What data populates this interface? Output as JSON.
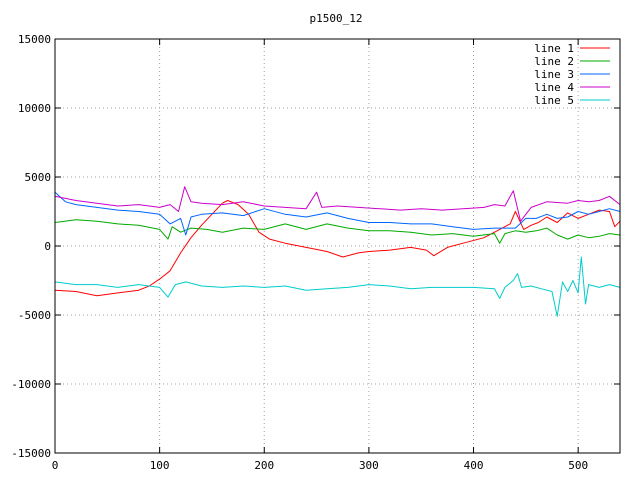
{
  "chart_data": {
    "type": "line",
    "title": "p1500_12",
    "xlabel": "",
    "ylabel": "",
    "xlim": [
      0,
      540
    ],
    "ylim": [
      -15000,
      15000
    ],
    "x_ticks": [
      0,
      100,
      200,
      300,
      400,
      500
    ],
    "y_ticks": [
      -15000,
      -10000,
      -5000,
      0,
      5000,
      10000,
      15000
    ],
    "grid": true,
    "legend_position": "top-right",
    "series": [
      {
        "name": "line 1",
        "color": "#ff0000",
        "points": [
          [
            0,
            -3200
          ],
          [
            20,
            -3300
          ],
          [
            40,
            -3600
          ],
          [
            60,
            -3400
          ],
          [
            80,
            -3200
          ],
          [
            90,
            -2900
          ],
          [
            100,
            -2400
          ],
          [
            110,
            -1800
          ],
          [
            120,
            -500
          ],
          [
            130,
            600
          ],
          [
            140,
            1500
          ],
          [
            150,
            2300
          ],
          [
            160,
            3100
          ],
          [
            165,
            3300
          ],
          [
            175,
            3000
          ],
          [
            185,
            2300
          ],
          [
            195,
            1000
          ],
          [
            205,
            500
          ],
          [
            220,
            200
          ],
          [
            240,
            -100
          ],
          [
            260,
            -400
          ],
          [
            275,
            -800
          ],
          [
            290,
            -500
          ],
          [
            300,
            -400
          ],
          [
            320,
            -300
          ],
          [
            340,
            -100
          ],
          [
            355,
            -300
          ],
          [
            362,
            -700
          ],
          [
            375,
            -100
          ],
          [
            390,
            200
          ],
          [
            410,
            600
          ],
          [
            425,
            1200
          ],
          [
            435,
            1600
          ],
          [
            440,
            2500
          ],
          [
            448,
            1200
          ],
          [
            455,
            1500
          ],
          [
            462,
            1700
          ],
          [
            470,
            2100
          ],
          [
            480,
            1700
          ],
          [
            490,
            2400
          ],
          [
            500,
            2000
          ],
          [
            510,
            2300
          ],
          [
            520,
            2600
          ],
          [
            530,
            2500
          ],
          [
            535,
            1400
          ],
          [
            540,
            1800
          ]
        ]
      },
      {
        "name": "line 2",
        "color": "#00aa00",
        "points": [
          [
            0,
            1700
          ],
          [
            20,
            1900
          ],
          [
            40,
            1800
          ],
          [
            60,
            1600
          ],
          [
            80,
            1500
          ],
          [
            100,
            1200
          ],
          [
            108,
            500
          ],
          [
            112,
            1400
          ],
          [
            120,
            1000
          ],
          [
            130,
            1300
          ],
          [
            145,
            1200
          ],
          [
            160,
            1000
          ],
          [
            180,
            1300
          ],
          [
            200,
            1200
          ],
          [
            220,
            1600
          ],
          [
            240,
            1200
          ],
          [
            260,
            1600
          ],
          [
            280,
            1300
          ],
          [
            300,
            1100
          ],
          [
            320,
            1100
          ],
          [
            340,
            1000
          ],
          [
            360,
            800
          ],
          [
            380,
            900
          ],
          [
            400,
            700
          ],
          [
            420,
            900
          ],
          [
            425,
            200
          ],
          [
            430,
            900
          ],
          [
            440,
            1100
          ],
          [
            450,
            1000
          ],
          [
            460,
            1100
          ],
          [
            470,
            1300
          ],
          [
            480,
            800
          ],
          [
            490,
            500
          ],
          [
            500,
            800
          ],
          [
            510,
            600
          ],
          [
            520,
            700
          ],
          [
            530,
            900
          ],
          [
            540,
            800
          ]
        ]
      },
      {
        "name": "line 3",
        "color": "#0066ff",
        "points": [
          [
            0,
            3900
          ],
          [
            10,
            3200
          ],
          [
            20,
            3000
          ],
          [
            40,
            2800
          ],
          [
            60,
            2600
          ],
          [
            80,
            2500
          ],
          [
            100,
            2300
          ],
          [
            110,
            1600
          ],
          [
            120,
            2000
          ],
          [
            125,
            800
          ],
          [
            130,
            2100
          ],
          [
            140,
            2300
          ],
          [
            160,
            2400
          ],
          [
            180,
            2200
          ],
          [
            200,
            2700
          ],
          [
            220,
            2300
          ],
          [
            240,
            2100
          ],
          [
            260,
            2400
          ],
          [
            280,
            2000
          ],
          [
            300,
            1700
          ],
          [
            320,
            1700
          ],
          [
            340,
            1600
          ],
          [
            360,
            1600
          ],
          [
            380,
            1400
          ],
          [
            400,
            1200
          ],
          [
            420,
            1300
          ],
          [
            440,
            1300
          ],
          [
            450,
            2000
          ],
          [
            460,
            2000
          ],
          [
            470,
            2300
          ],
          [
            480,
            2000
          ],
          [
            490,
            2100
          ],
          [
            500,
            2500
          ],
          [
            510,
            2300
          ],
          [
            520,
            2500
          ],
          [
            530,
            2700
          ],
          [
            540,
            2500
          ]
        ]
      },
      {
        "name": "line 4",
        "color": "#cc00cc",
        "points": [
          [
            0,
            3600
          ],
          [
            20,
            3300
          ],
          [
            40,
            3100
          ],
          [
            60,
            2900
          ],
          [
            80,
            3000
          ],
          [
            100,
            2800
          ],
          [
            110,
            3000
          ],
          [
            118,
            2500
          ],
          [
            124,
            4300
          ],
          [
            130,
            3200
          ],
          [
            140,
            3100
          ],
          [
            160,
            3000
          ],
          [
            180,
            3200
          ],
          [
            200,
            2900
          ],
          [
            220,
            2800
          ],
          [
            240,
            2700
          ],
          [
            250,
            3900
          ],
          [
            255,
            2800
          ],
          [
            270,
            2900
          ],
          [
            290,
            2800
          ],
          [
            310,
            2700
          ],
          [
            330,
            2600
          ],
          [
            350,
            2700
          ],
          [
            370,
            2600
          ],
          [
            390,
            2700
          ],
          [
            410,
            2800
          ],
          [
            420,
            3000
          ],
          [
            430,
            2900
          ],
          [
            438,
            4000
          ],
          [
            445,
            1800
          ],
          [
            455,
            2800
          ],
          [
            470,
            3200
          ],
          [
            490,
            3100
          ],
          [
            500,
            3300
          ],
          [
            510,
            3200
          ],
          [
            520,
            3300
          ],
          [
            530,
            3600
          ],
          [
            540,
            3000
          ]
        ]
      },
      {
        "name": "line 5",
        "color": "#00cccc",
        "points": [
          [
            0,
            -2600
          ],
          [
            20,
            -2800
          ],
          [
            40,
            -2800
          ],
          [
            60,
            -3000
          ],
          [
            80,
            -2800
          ],
          [
            100,
            -3000
          ],
          [
            108,
            -3700
          ],
          [
            115,
            -2800
          ],
          [
            125,
            -2600
          ],
          [
            140,
            -2900
          ],
          [
            160,
            -3000
          ],
          [
            180,
            -2900
          ],
          [
            200,
            -3000
          ],
          [
            220,
            -2900
          ],
          [
            240,
            -3200
          ],
          [
            260,
            -3100
          ],
          [
            280,
            -3000
          ],
          [
            300,
            -2800
          ],
          [
            320,
            -2900
          ],
          [
            340,
            -3100
          ],
          [
            360,
            -3000
          ],
          [
            380,
            -3000
          ],
          [
            400,
            -3000
          ],
          [
            420,
            -3100
          ],
          [
            425,
            -3800
          ],
          [
            430,
            -3000
          ],
          [
            438,
            -2500
          ],
          [
            442,
            -2000
          ],
          [
            446,
            -3000
          ],
          [
            455,
            -2900
          ],
          [
            465,
            -3100
          ],
          [
            475,
            -3300
          ],
          [
            480,
            -5100
          ],
          [
            485,
            -2600
          ],
          [
            490,
            -3300
          ],
          [
            495,
            -2500
          ],
          [
            500,
            -3400
          ],
          [
            503,
            -800
          ],
          [
            507,
            -4200
          ],
          [
            510,
            -2800
          ],
          [
            520,
            -3000
          ],
          [
            530,
            -2800
          ],
          [
            540,
            -3000
          ]
        ]
      }
    ]
  }
}
